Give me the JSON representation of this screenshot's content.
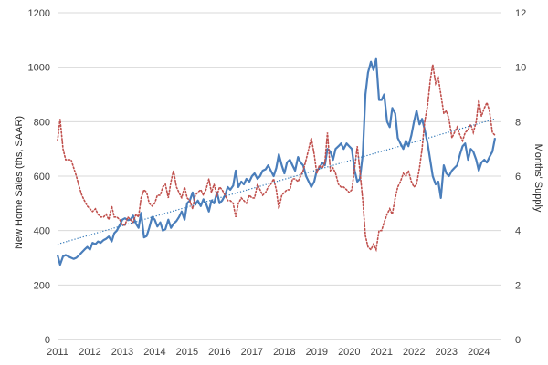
{
  "chart_data": {
    "type": "line",
    "title": "",
    "xlabel": "",
    "ylabel": "New Home Sales (ths, SAAR)",
    "y2label": "Months' Supply",
    "xlim": [
      2011,
      2024.67
    ],
    "ylim": [
      0,
      1200
    ],
    "y2lim": [
      0,
      12
    ],
    "x_ticks": [
      "2011",
      "2012",
      "2013",
      "2014",
      "2015",
      "2016",
      "2017",
      "2018",
      "2019",
      "2020",
      "2021",
      "2022",
      "2023",
      "2024"
    ],
    "y_ticks": [
      "0",
      "200",
      "400",
      "600",
      "800",
      "1000",
      "1200"
    ],
    "y2_ticks": [
      "0",
      "2",
      "4",
      "6",
      "8",
      "10",
      "12"
    ],
    "grid": "horizontal",
    "legend": "none",
    "colors": {
      "sales": "#4a7ebb",
      "supply": "#c0504d",
      "trend": "#2e75b6"
    },
    "series": [
      {
        "axis": "left",
        "style": "solid",
        "x": [
          2011.0,
          2011.08,
          2011.17,
          2011.25,
          2011.33,
          2011.42,
          2011.5,
          2011.58,
          2011.67,
          2011.75,
          2011.83,
          2011.92,
          2012.0,
          2012.08,
          2012.17,
          2012.25,
          2012.33,
          2012.42,
          2012.5,
          2012.58,
          2012.67,
          2012.75,
          2012.83,
          2012.92,
          2013.0,
          2013.08,
          2013.17,
          2013.25,
          2013.33,
          2013.42,
          2013.5,
          2013.58,
          2013.67,
          2013.75,
          2013.83,
          2013.92,
          2014.0,
          2014.08,
          2014.17,
          2014.25,
          2014.33,
          2014.42,
          2014.5,
          2014.58,
          2014.67,
          2014.75,
          2014.83,
          2014.92,
          2015.0,
          2015.08,
          2015.17,
          2015.25,
          2015.33,
          2015.42,
          2015.5,
          2015.58,
          2015.67,
          2015.75,
          2015.83,
          2015.92,
          2016.0,
          2016.08,
          2016.17,
          2016.25,
          2016.33,
          2016.42,
          2016.5,
          2016.58,
          2016.67,
          2016.75,
          2016.83,
          2016.92,
          2017.0,
          2017.08,
          2017.17,
          2017.25,
          2017.33,
          2017.42,
          2017.5,
          2017.58,
          2017.67,
          2017.75,
          2017.83,
          2017.92,
          2018.0,
          2018.08,
          2018.17,
          2018.25,
          2018.33,
          2018.42,
          2018.5,
          2018.58,
          2018.67,
          2018.75,
          2018.83,
          2018.92,
          2019.0,
          2019.08,
          2019.17,
          2019.25,
          2019.33,
          2019.42,
          2019.5,
          2019.58,
          2019.67,
          2019.75,
          2019.83,
          2019.92,
          2020.0,
          2020.08,
          2020.17,
          2020.25,
          2020.33,
          2020.42,
          2020.5,
          2020.58,
          2020.67,
          2020.75,
          2020.83,
          2020.92,
          2021.0,
          2021.08,
          2021.17,
          2021.25,
          2021.33,
          2021.42,
          2021.5,
          2021.58,
          2021.67,
          2021.75,
          2021.83,
          2021.92,
          2022.0,
          2022.08,
          2022.17,
          2022.25,
          2022.33,
          2022.42,
          2022.5,
          2022.58,
          2022.67,
          2022.75,
          2022.83,
          2022.92,
          2023.0,
          2023.08,
          2023.17,
          2023.25,
          2023.33,
          2023.42,
          2023.5,
          2023.58,
          2023.67,
          2023.75,
          2023.83,
          2023.92,
          2024.0,
          2024.08,
          2024.17,
          2024.25,
          2024.33,
          2024.42,
          2024.5
        ],
        "values": [
          310,
          275,
          305,
          310,
          305,
          300,
          296,
          300,
          310,
          320,
          330,
          340,
          330,
          355,
          350,
          360,
          355,
          365,
          370,
          378,
          360,
          390,
          400,
          420,
          440,
          445,
          438,
          440,
          455,
          425,
          410,
          465,
          375,
          380,
          410,
          450,
          440,
          415,
          430,
          400,
          405,
          440,
          410,
          425,
          435,
          450,
          470,
          440,
          500,
          510,
          540,
          495,
          510,
          490,
          515,
          500,
          470,
          510,
          500,
          540,
          500,
          510,
          530,
          560,
          550,
          565,
          620,
          560,
          580,
          570,
          590,
          580,
          600,
          610,
          590,
          600,
          620,
          625,
          640,
          620,
          600,
          630,
          680,
          640,
          610,
          650,
          660,
          640,
          620,
          670,
          650,
          640,
          600,
          580,
          560,
          580,
          620,
          630,
          650,
          640,
          700,
          690,
          660,
          700,
          710,
          720,
          700,
          720,
          710,
          700,
          620,
          580,
          590,
          680,
          900,
          980,
          1020,
          990,
          1030,
          880,
          880,
          900,
          800,
          780,
          850,
          830,
          740,
          720,
          700,
          730,
          710,
          750,
          800,
          840,
          790,
          810,
          770,
          720,
          660,
          600,
          570,
          580,
          520,
          640,
          610,
          600,
          620,
          630,
          640,
          680,
          710,
          720,
          660,
          700,
          690,
          660,
          620,
          650,
          660,
          650,
          670,
          690,
          740
        ]
      },
      {
        "axis": "right",
        "style": "dotted",
        "x": [
          2011.0,
          2011.08,
          2011.17,
          2011.25,
          2011.33,
          2011.42,
          2011.5,
          2011.58,
          2011.67,
          2011.75,
          2011.83,
          2011.92,
          2012.0,
          2012.08,
          2012.17,
          2012.25,
          2012.33,
          2012.42,
          2012.5,
          2012.58,
          2012.67,
          2012.75,
          2012.83,
          2012.92,
          2013.0,
          2013.08,
          2013.17,
          2013.25,
          2013.33,
          2013.42,
          2013.5,
          2013.58,
          2013.67,
          2013.75,
          2013.83,
          2013.92,
          2014.0,
          2014.08,
          2014.17,
          2014.25,
          2014.33,
          2014.42,
          2014.5,
          2014.58,
          2014.67,
          2014.75,
          2014.83,
          2014.92,
          2015.0,
          2015.08,
          2015.17,
          2015.25,
          2015.33,
          2015.42,
          2015.5,
          2015.58,
          2015.67,
          2015.75,
          2015.83,
          2015.92,
          2016.0,
          2016.08,
          2016.17,
          2016.25,
          2016.33,
          2016.42,
          2016.5,
          2016.58,
          2016.67,
          2016.75,
          2016.83,
          2016.92,
          2017.0,
          2017.08,
          2017.17,
          2017.25,
          2017.33,
          2017.42,
          2017.5,
          2017.58,
          2017.67,
          2017.75,
          2017.83,
          2017.92,
          2018.0,
          2018.08,
          2018.17,
          2018.25,
          2018.33,
          2018.42,
          2018.5,
          2018.58,
          2018.67,
          2018.75,
          2018.83,
          2018.92,
          2019.0,
          2019.08,
          2019.17,
          2019.25,
          2019.33,
          2019.42,
          2019.5,
          2019.58,
          2019.67,
          2019.75,
          2019.83,
          2019.92,
          2020.0,
          2020.08,
          2020.17,
          2020.25,
          2020.33,
          2020.42,
          2020.5,
          2020.58,
          2020.67,
          2020.75,
          2020.83,
          2020.92,
          2021.0,
          2021.08,
          2021.17,
          2021.25,
          2021.33,
          2021.42,
          2021.5,
          2021.58,
          2021.67,
          2021.75,
          2021.83,
          2021.92,
          2022.0,
          2022.08,
          2022.17,
          2022.25,
          2022.33,
          2022.42,
          2022.5,
          2022.58,
          2022.67,
          2022.75,
          2022.83,
          2022.92,
          2023.0,
          2023.08,
          2023.17,
          2023.25,
          2023.33,
          2023.42,
          2023.5,
          2023.58,
          2023.67,
          2023.75,
          2023.83,
          2023.92,
          2024.0,
          2024.08,
          2024.17,
          2024.25,
          2024.33,
          2024.42,
          2024.5
        ],
        "values": [
          7.3,
          8.1,
          7.0,
          6.6,
          6.6,
          6.6,
          6.3,
          6.0,
          5.6,
          5.3,
          5.1,
          4.9,
          4.8,
          4.7,
          4.8,
          4.6,
          4.5,
          4.5,
          4.6,
          4.4,
          4.9,
          4.5,
          4.5,
          4.4,
          4.2,
          4.2,
          4.5,
          4.4,
          4.3,
          4.6,
          4.5,
          5.2,
          5.5,
          5.4,
          5.0,
          4.9,
          5.0,
          5.3,
          5.3,
          5.6,
          5.7,
          5.2,
          5.8,
          6.2,
          5.6,
          5.4,
          5.2,
          5.6,
          5.2,
          5.1,
          4.8,
          5.3,
          5.4,
          5.5,
          5.3,
          5.5,
          5.9,
          5.4,
          5.7,
          5.3,
          5.6,
          5.5,
          5.3,
          5.1,
          5.1,
          5.0,
          4.5,
          5.0,
          5.2,
          5.1,
          5.0,
          5.3,
          5.2,
          5.2,
          5.7,
          5.5,
          5.3,
          5.4,
          5.6,
          5.7,
          5.9,
          5.5,
          4.8,
          5.3,
          5.4,
          5.5,
          5.5,
          5.9,
          5.9,
          5.8,
          6.0,
          6.2,
          6.6,
          7.0,
          7.4,
          6.8,
          6.1,
          6.4,
          6.3,
          6.5,
          7.6,
          6.2,
          6.3,
          6.1,
          5.7,
          5.6,
          5.6,
          5.5,
          5.4,
          5.5,
          6.3,
          7.1,
          6.2,
          5.1,
          3.8,
          3.4,
          3.3,
          3.5,
          3.3,
          4.0,
          4.0,
          4.3,
          4.6,
          4.8,
          4.6,
          5.2,
          5.6,
          5.8,
          6.1,
          6.0,
          6.2,
          5.8,
          5.6,
          5.7,
          6.3,
          7.0,
          8.0,
          8.6,
          9.5,
          10.1,
          9.4,
          9.6,
          9.0,
          8.3,
          8.4,
          8.1,
          7.4,
          7.6,
          7.8,
          7.5,
          7.3,
          7.6,
          7.7,
          7.9,
          7.6,
          8.0,
          8.8,
          8.2,
          8.5,
          8.7,
          8.4,
          7.6,
          7.5
        ]
      },
      {
        "axis": "left",
        "style": "trend",
        "x": [
          2011.0,
          2024.5
        ],
        "values": [
          350,
          810
        ]
      }
    ]
  }
}
